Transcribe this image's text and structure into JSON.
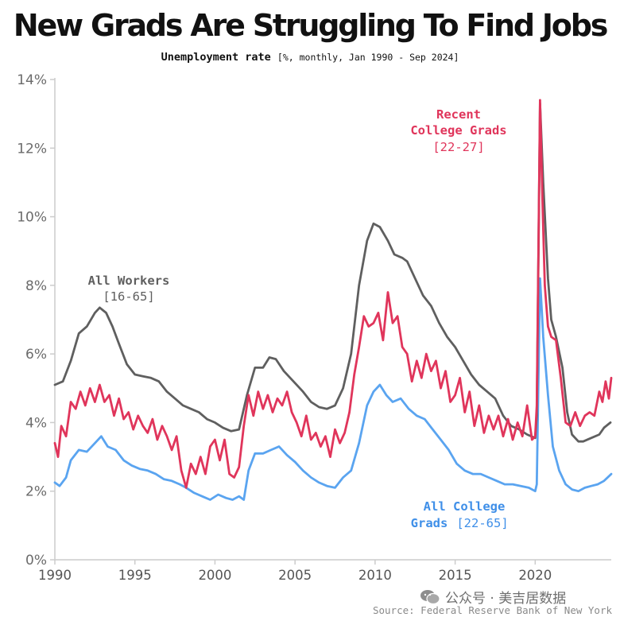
{
  "title": "New Grads Are Struggling To Find Jobs",
  "subtitle": {
    "bold_part": "Unemployment rate",
    "light_part": "[%, monthly, Jan 1990 - Sep 2024]"
  },
  "annotations": {
    "all_workers": {
      "line1": "All Workers",
      "line2": "[16-65]"
    },
    "recent_grads": {
      "line1": "Recent",
      "line2": "College Grads",
      "line3": "[22-27]"
    },
    "all_college": {
      "line1": "All College",
      "line2": "Grads",
      "line2b": "[22-65]"
    }
  },
  "watermark": "公众号 · 美吉居数据",
  "source": "Source: Federal Reserve Bank of New York",
  "colors": {
    "all_workers": "#5f5f5f",
    "recent_grads": "#e0355b",
    "all_college_grads": "#5aa4f0",
    "axis": "#cccccc",
    "watermark_icon": "#8d8d8d"
  },
  "chart_data": {
    "type": "line",
    "title": "New Grads Are Struggling To Find Jobs",
    "ylabel": "Unemployment rate",
    "xlim": [
      1990,
      2024.75
    ],
    "ylim": [
      0,
      14
    ],
    "yticks": [
      0,
      2,
      4,
      6,
      8,
      10,
      12,
      14
    ],
    "ytick_labels": [
      "0%",
      "2%",
      "4%",
      "6%",
      "8%",
      "10%",
      "12%",
      "14%"
    ],
    "xticks": [
      1990,
      1995,
      2000,
      2005,
      2010,
      2015,
      2020
    ],
    "xtick_labels": [
      "1990",
      "1995",
      "2000",
      "2005",
      "2010",
      "2015",
      "2020"
    ],
    "grid": false,
    "series": [
      {
        "name": "All Workers [16-65]",
        "x": [
          1990,
          1990.5,
          1991,
          1991.5,
          1992,
          1992.5,
          1992.8,
          1993.2,
          1993.6,
          1994,
          1994.5,
          1995,
          1995.5,
          1996,
          1996.5,
          1997,
          1997.5,
          1998,
          1998.5,
          1999,
          1999.5,
          2000,
          2000.5,
          2001,
          2001.5,
          2002,
          2002.5,
          2003,
          2003.4,
          2003.8,
          2004.3,
          2005,
          2005.5,
          2006,
          2006.5,
          2007,
          2007.5,
          2008,
          2008.5,
          2009,
          2009.5,
          2009.9,
          2010.3,
          2010.8,
          2011.2,
          2011.7,
          2012,
          2012.5,
          2013,
          2013.5,
          2014,
          2014.5,
          2015,
          2015.5,
          2016,
          2016.5,
          2017,
          2017.5,
          2018,
          2018.5,
          2019,
          2019.5,
          2020,
          2020.1,
          2020.3,
          2020.5,
          2020.8,
          2021,
          2021.3,
          2021.7,
          2022,
          2022.3,
          2022.7,
          2023,
          2023.5,
          2024,
          2024.3,
          2024.7
        ],
        "y": [
          5.1,
          5.2,
          5.8,
          6.6,
          6.8,
          7.2,
          7.35,
          7.2,
          6.8,
          6.3,
          5.7,
          5.4,
          5.35,
          5.3,
          5.2,
          4.9,
          4.7,
          4.5,
          4.4,
          4.3,
          4.1,
          4.0,
          3.85,
          3.75,
          3.8,
          4.8,
          5.6,
          5.6,
          5.9,
          5.85,
          5.5,
          5.15,
          4.9,
          4.6,
          4.45,
          4.4,
          4.5,
          5.0,
          6.0,
          8.0,
          9.3,
          9.8,
          9.7,
          9.3,
          8.9,
          8.8,
          8.7,
          8.2,
          7.7,
          7.4,
          6.9,
          6.5,
          6.2,
          5.8,
          5.4,
          5.1,
          4.9,
          4.7,
          4.2,
          3.9,
          3.8,
          3.65,
          3.55,
          4.2,
          13.3,
          11.0,
          8.2,
          7.0,
          6.5,
          5.6,
          4.3,
          3.65,
          3.45,
          3.45,
          3.55,
          3.65,
          3.85,
          4.0
        ]
      },
      {
        "name": "Recent College Grads [22-27]",
        "x": [
          1990,
          1990.2,
          1990.4,
          1990.7,
          1991,
          1991.3,
          1991.6,
          1991.9,
          1992.2,
          1992.5,
          1992.8,
          1993.1,
          1993.4,
          1993.7,
          1994,
          1994.3,
          1994.6,
          1994.9,
          1995.2,
          1995.5,
          1995.8,
          1996.1,
          1996.4,
          1996.7,
          1997,
          1997.3,
          1997.6,
          1997.9,
          1998.2,
          1998.5,
          1998.8,
          1999.1,
          1999.4,
          1999.7,
          2000,
          2000.3,
          2000.6,
          2000.9,
          2001.2,
          2001.5,
          2001.8,
          2002.1,
          2002.4,
          2002.7,
          2003,
          2003.3,
          2003.6,
          2003.9,
          2004.2,
          2004.5,
          2004.8,
          2005.1,
          2005.4,
          2005.7,
          2006,
          2006.3,
          2006.6,
          2006.9,
          2007.2,
          2007.5,
          2007.8,
          2008.1,
          2008.4,
          2008.7,
          2009,
          2009.3,
          2009.6,
          2009.9,
          2010.2,
          2010.5,
          2010.8,
          2011.1,
          2011.4,
          2011.7,
          2012,
          2012.3,
          2012.6,
          2012.9,
          2013.2,
          2013.5,
          2013.8,
          2014.1,
          2014.4,
          2014.7,
          2015,
          2015.3,
          2015.6,
          2015.9,
          2016.2,
          2016.5,
          2016.8,
          2017.1,
          2017.4,
          2017.7,
          2018,
          2018.3,
          2018.6,
          2018.9,
          2019.2,
          2019.5,
          2019.8,
          2020,
          2020.1,
          2020.3,
          2020.45,
          2020.6,
          2020.8,
          2021,
          2021.3,
          2021.6,
          2021.9,
          2022.2,
          2022.5,
          2022.8,
          2023.1,
          2023.4,
          2023.7,
          2024,
          2024.2,
          2024.4,
          2024.6,
          2024.75
        ],
        "y": [
          3.4,
          3.0,
          3.9,
          3.6,
          4.6,
          4.4,
          4.9,
          4.5,
          5.0,
          4.6,
          5.1,
          4.6,
          4.8,
          4.2,
          4.7,
          4.1,
          4.3,
          3.8,
          4.2,
          3.9,
          3.7,
          4.1,
          3.5,
          3.9,
          3.6,
          3.2,
          3.6,
          2.6,
          2.1,
          2.8,
          2.5,
          3.0,
          2.5,
          3.3,
          3.5,
          2.9,
          3.5,
          2.5,
          2.4,
          2.7,
          3.9,
          4.8,
          4.2,
          4.9,
          4.4,
          4.8,
          4.3,
          4.7,
          4.5,
          4.9,
          4.3,
          4.0,
          3.6,
          4.2,
          3.5,
          3.7,
          3.3,
          3.6,
          3.0,
          3.8,
          3.4,
          3.7,
          4.3,
          5.4,
          6.2,
          7.1,
          6.8,
          6.9,
          7.2,
          6.4,
          7.8,
          6.9,
          7.1,
          6.2,
          6.0,
          5.2,
          5.8,
          5.3,
          6.0,
          5.5,
          5.8,
          5.0,
          5.5,
          4.6,
          4.8,
          5.3,
          4.3,
          4.9,
          3.9,
          4.5,
          3.7,
          4.2,
          3.8,
          4.2,
          3.6,
          4.1,
          3.5,
          4.0,
          3.6,
          4.5,
          3.5,
          3.6,
          4.5,
          13.4,
          10.5,
          8.0,
          6.8,
          6.5,
          6.4,
          5.3,
          4.0,
          3.9,
          4.3,
          3.9,
          4.2,
          4.3,
          4.2,
          4.9,
          4.6,
          5.2,
          4.7,
          5.3
        ]
      },
      {
        "name": "All College Grads [22-65]",
        "x": [
          1990,
          1990.3,
          1990.7,
          1991,
          1991.5,
          1992,
          1992.5,
          1992.9,
          1993.3,
          1993.8,
          1994.3,
          1994.8,
          1995.3,
          1995.8,
          1996.3,
          1996.8,
          1997.3,
          1997.8,
          1998.2,
          1998.7,
          1999.2,
          1999.7,
          2000.2,
          2000.7,
          2001.1,
          2001.5,
          2001.8,
          2002.1,
          2002.5,
          2003,
          2003.5,
          2004,
          2004.5,
          2005,
          2005.5,
          2006,
          2006.5,
          2007,
          2007.5,
          2008,
          2008.5,
          2009,
          2009.5,
          2009.9,
          2010.3,
          2010.7,
          2011.1,
          2011.6,
          2012.1,
          2012.6,
          2013.1,
          2013.6,
          2014.1,
          2014.6,
          2015.1,
          2015.6,
          2016.1,
          2016.6,
          2017.1,
          2017.6,
          2018.1,
          2018.6,
          2019.1,
          2019.6,
          2020,
          2020.1,
          2020.3,
          2020.5,
          2020.8,
          2021.1,
          2021.5,
          2021.9,
          2022.3,
          2022.7,
          2023.1,
          2023.5,
          2023.9,
          2024.3,
          2024.75
        ],
        "y": [
          2.25,
          2.15,
          2.4,
          2.9,
          3.2,
          3.15,
          3.4,
          3.6,
          3.3,
          3.2,
          2.9,
          2.75,
          2.65,
          2.6,
          2.5,
          2.35,
          2.3,
          2.2,
          2.1,
          1.95,
          1.85,
          1.75,
          1.9,
          1.8,
          1.75,
          1.85,
          1.75,
          2.6,
          3.1,
          3.1,
          3.2,
          3.3,
          3.05,
          2.85,
          2.6,
          2.4,
          2.25,
          2.15,
          2.1,
          2.4,
          2.6,
          3.4,
          4.5,
          4.9,
          5.1,
          4.8,
          4.6,
          4.7,
          4.4,
          4.2,
          4.1,
          3.8,
          3.5,
          3.2,
          2.8,
          2.6,
          2.5,
          2.5,
          2.4,
          2.3,
          2.2,
          2.2,
          2.15,
          2.1,
          2.0,
          2.2,
          8.2,
          6.5,
          4.8,
          3.3,
          2.6,
          2.2,
          2.05,
          2.0,
          2.1,
          2.15,
          2.2,
          2.3,
          2.5
        ]
      }
    ]
  }
}
